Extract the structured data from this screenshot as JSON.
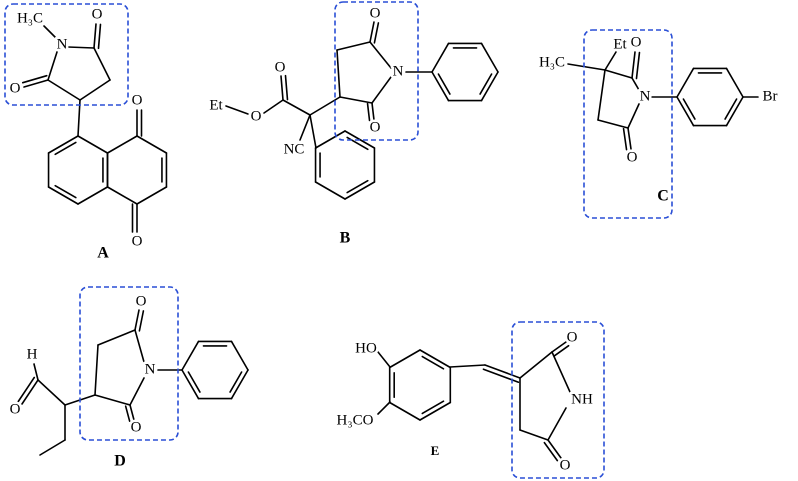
{
  "molecules": [
    {
      "label": "A",
      "atoms": [
        "H₃C",
        "N",
        "O",
        "O",
        "O",
        "O"
      ]
    },
    {
      "label": "B",
      "atoms": [
        "O",
        "N",
        "O",
        "O",
        "Et",
        "O",
        "NC"
      ]
    },
    {
      "label": "C",
      "atoms": [
        "Et",
        "H₃C",
        "O",
        "N",
        "O",
        "Br"
      ]
    },
    {
      "label": "D",
      "atoms": [
        "O",
        "N",
        "O",
        "H",
        "O"
      ]
    },
    {
      "label": "E",
      "atoms": [
        "HO",
        "H₃CO",
        "O",
        "NH",
        "O"
      ]
    }
  ]
}
